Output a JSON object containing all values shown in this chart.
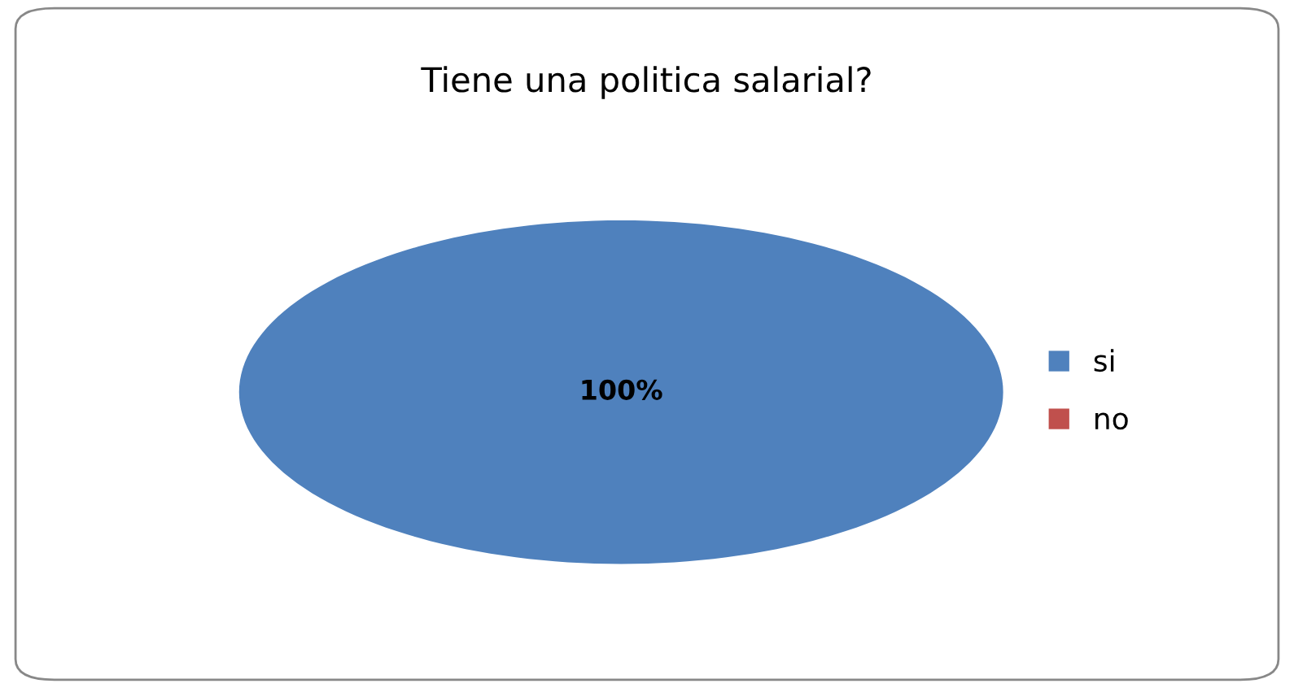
{
  "chart_data": {
    "type": "pie",
    "title": "Tiene una politica salarial?",
    "categories": [
      "si",
      "no"
    ],
    "values": [
      100,
      0
    ],
    "colors": [
      "#4f81bd",
      "#c0504d"
    ],
    "value_labels": [
      "100%",
      null
    ],
    "legend": "right"
  }
}
